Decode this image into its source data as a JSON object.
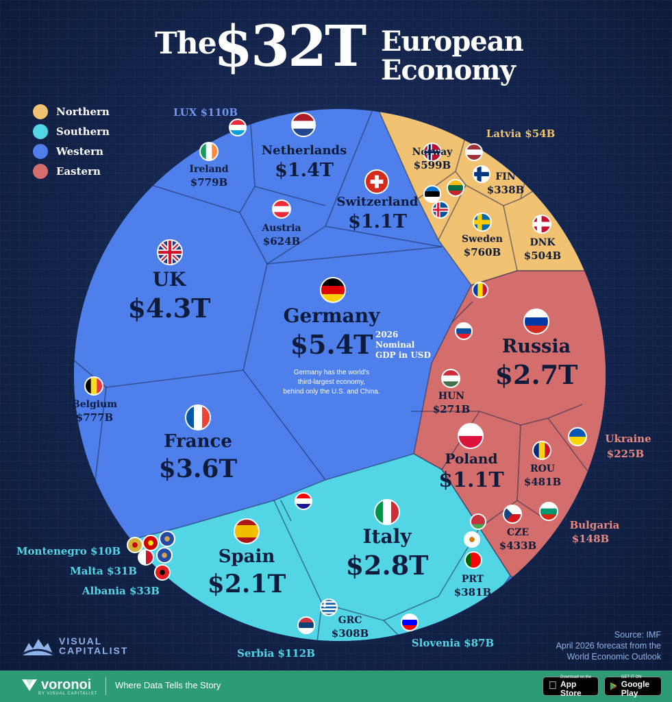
{
  "title": {
    "part1": "The",
    "part2": "$32T",
    "part3_line1": "European",
    "part3_line2": "Economy"
  },
  "legend": [
    {
      "label": "Northern",
      "color": "#f0c272"
    },
    {
      "label": "Southern",
      "color": "#52d6e6"
    },
    {
      "label": "Western",
      "color": "#4f7fea"
    },
    {
      "label": "Eastern",
      "color": "#d46e6c"
    }
  ],
  "chart_data": {
    "type": "voronoi-treemap",
    "title": "The $32T European Economy",
    "subtitle": "2026 Nominal GDP in USD",
    "annotation": "Germany has the world's third-largest economy, behind only the U.S. and China.",
    "groups": [
      {
        "name": "Northern",
        "color": "#f0c272",
        "items": [
          {
            "label": "Norway",
            "value_text": "$599B",
            "value": 599
          },
          {
            "label": "FIN",
            "value_text": "$338B",
            "value": 338
          },
          {
            "label": "Sweden",
            "value_text": "$760B",
            "value": 760
          },
          {
            "label": "DNK",
            "value_text": "$504B",
            "value": 504
          },
          {
            "label": "Latvia",
            "value_text": "$54B",
            "value": 54
          }
        ]
      },
      {
        "name": "Southern",
        "color": "#52d6e6",
        "items": [
          {
            "label": "Italy",
            "value_text": "$2.8T",
            "value": 2800
          },
          {
            "label": "Spain",
            "value_text": "$2.1T",
            "value": 2100
          },
          {
            "label": "PRT",
            "value_text": "$381B",
            "value": 381
          },
          {
            "label": "GRC",
            "value_text": "$308B",
            "value": 308
          },
          {
            "label": "Serbia",
            "value_text": "$112B",
            "value": 112
          },
          {
            "label": "Slovenia",
            "value_text": "$87B",
            "value": 87
          },
          {
            "label": "Albania",
            "value_text": "$33B",
            "value": 33
          },
          {
            "label": "Malta",
            "value_text": "$31B",
            "value": 31
          },
          {
            "label": "Montenegro",
            "value_text": "$10B",
            "value": 10
          }
        ]
      },
      {
        "name": "Western",
        "color": "#4f7fea",
        "items": [
          {
            "label": "Germany",
            "value_text": "$5.4T",
            "value": 5400
          },
          {
            "label": "UK",
            "value_text": "$4.3T",
            "value": 4300
          },
          {
            "label": "France",
            "value_text": "$3.6T",
            "value": 3600
          },
          {
            "label": "Netherlands",
            "value_text": "$1.4T",
            "value": 1400
          },
          {
            "label": "Switzerland",
            "value_text": "$1.1T",
            "value": 1100
          },
          {
            "label": "Ireland",
            "value_text": "$779B",
            "value": 779
          },
          {
            "label": "Belgium",
            "value_text": "$777B",
            "value": 777
          },
          {
            "label": "Austria",
            "value_text": "$624B",
            "value": 624
          },
          {
            "label": "LUX",
            "value_text": "$110B",
            "value": 110
          }
        ]
      },
      {
        "name": "Eastern",
        "color": "#d46e6c",
        "items": [
          {
            "label": "Russia",
            "value_text": "$2.7T",
            "value": 2700
          },
          {
            "label": "Poland",
            "value_text": "$1.1T",
            "value": 1100
          },
          {
            "label": "ROU",
            "value_text": "$481B",
            "value": 481
          },
          {
            "label": "CZE",
            "value_text": "$433B",
            "value": 433
          },
          {
            "label": "HUN",
            "value_text": "$271B",
            "value": 271
          },
          {
            "label": "Ukraine",
            "value_text": "$225B",
            "value": 225
          },
          {
            "label": "Bulgaria",
            "value_text": "$148B",
            "value": 148
          }
        ]
      }
    ]
  },
  "labels": {
    "germany_sub1": "2026",
    "germany_sub2": "Nominal",
    "germany_sub3": "GDP in USD",
    "germany_note1": "Germany has the world's",
    "germany_note2": "third-largest economy,",
    "germany_note3": "behind only the U.S. and China."
  },
  "source": {
    "line1": "Source: IMF",
    "line2": "April 2026 forecast from the",
    "line3": "World Economic Outlook"
  },
  "brand": {
    "vc_line1": "VISUAL",
    "vc_line2": "CAPITALIST",
    "voronoi": "voronoi",
    "voronoi_sub": "BY VISUAL CAPITALIST",
    "tagline": "Where Data Tells the Story"
  },
  "stores": {
    "apple_small": "Download on the",
    "apple_big": "App Store",
    "google_small": "GET IT ON",
    "google_big": "Google Play"
  }
}
